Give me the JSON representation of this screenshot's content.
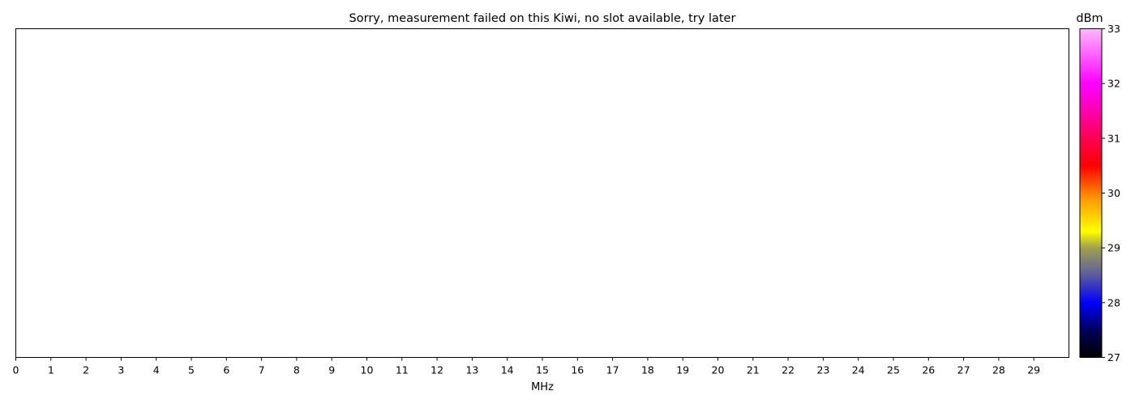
{
  "chart_data": {
    "type": "heatmap",
    "title": "Sorry, measurement failed on this Kiwi, no slot available, try later",
    "xlabel": "MHz",
    "ylabel": "",
    "xlim": [
      0,
      30
    ],
    "x_ticks": [
      "0",
      "1",
      "2",
      "3",
      "4",
      "5",
      "6",
      "7",
      "8",
      "9",
      "10",
      "11",
      "12",
      "13",
      "14",
      "15",
      "16",
      "17",
      "18",
      "19",
      "20",
      "21",
      "22",
      "23",
      "24",
      "25",
      "26",
      "27",
      "28",
      "29"
    ],
    "values": [],
    "grid": false,
    "colorbar": {
      "label": "dBm",
      "range": [
        27,
        33
      ],
      "ticks": [
        "27",
        "28",
        "29",
        "30",
        "31",
        "32",
        "33"
      ],
      "colormap_stops": [
        {
          "value": 27.0,
          "color": "#000000"
        },
        {
          "value": 27.5,
          "color": "#00005a"
        },
        {
          "value": 28.0,
          "color": "#0000ff"
        },
        {
          "value": 28.5,
          "color": "#5a5aa0"
        },
        {
          "value": 29.0,
          "color": "#a0a050"
        },
        {
          "value": 29.3,
          "color": "#ffff00"
        },
        {
          "value": 29.9,
          "color": "#ff9900"
        },
        {
          "value": 30.5,
          "color": "#ff0000"
        },
        {
          "value": 31.0,
          "color": "#ff0050"
        },
        {
          "value": 31.5,
          "color": "#ff00b0"
        },
        {
          "value": 32.0,
          "color": "#ff00ff"
        },
        {
          "value": 33.0,
          "color": "#ffb8ff"
        }
      ]
    }
  }
}
